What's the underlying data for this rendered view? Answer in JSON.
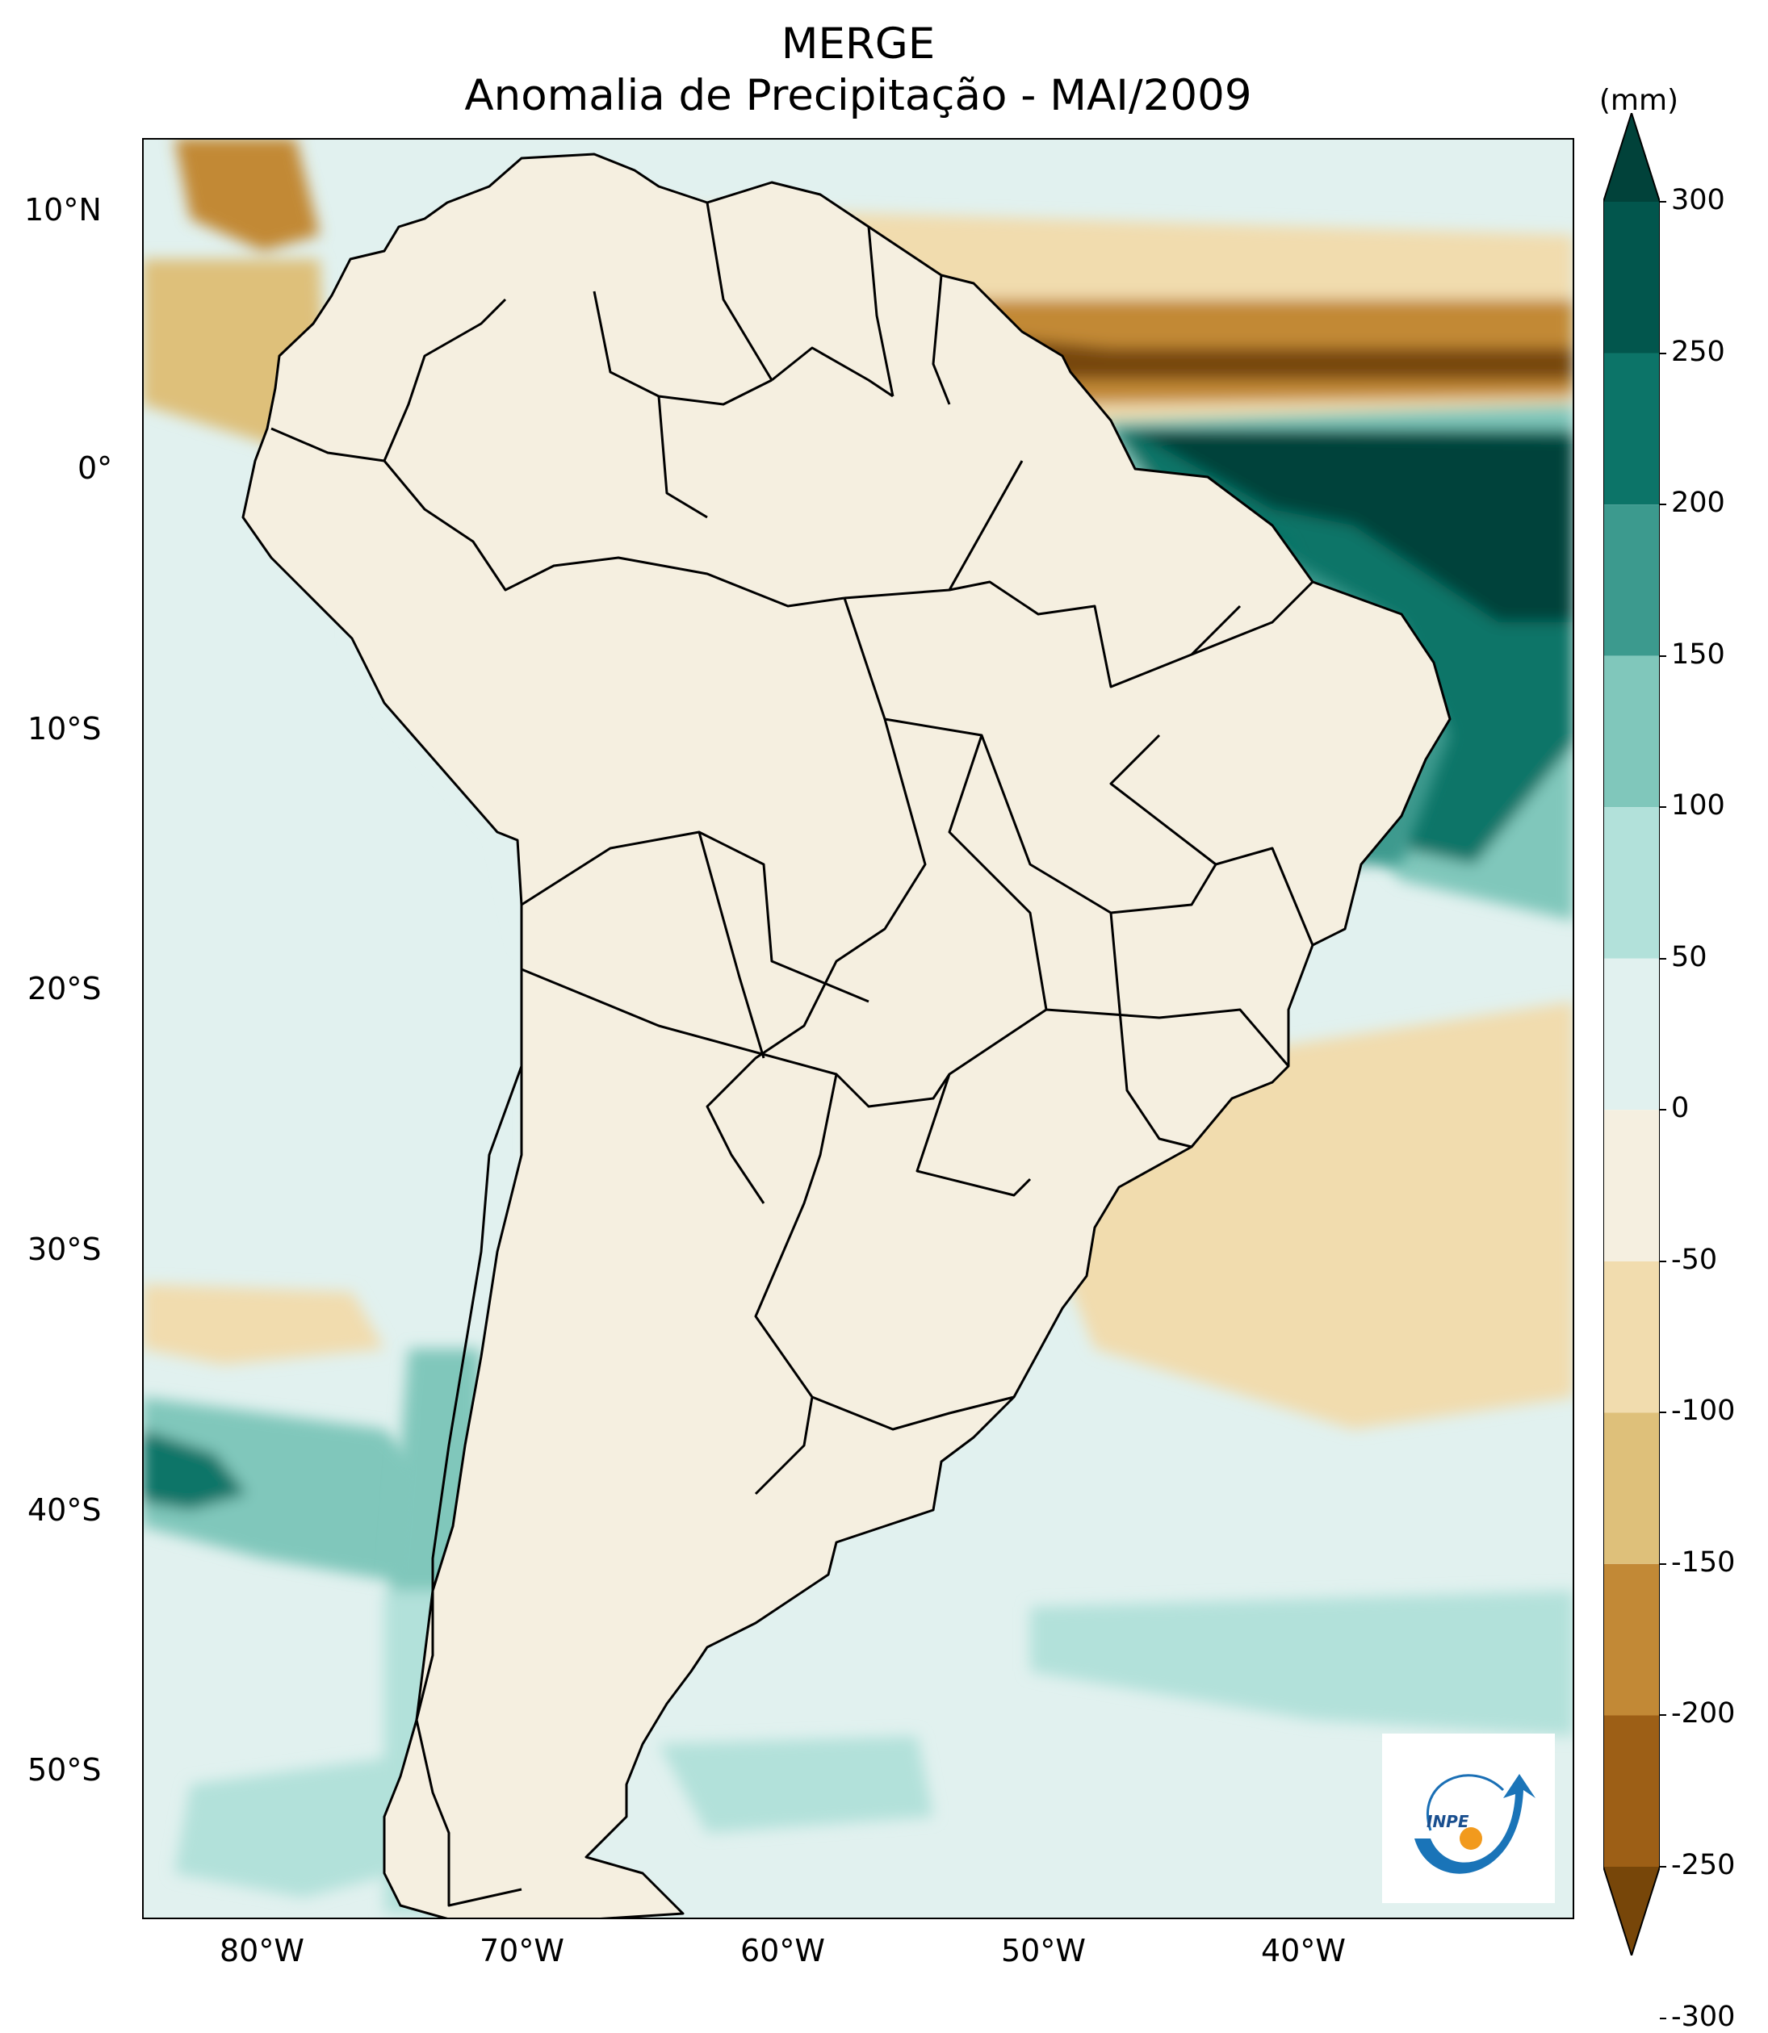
{
  "title": "MERGE",
  "subtitle": "Anomalia de Precipitação - MAI/2009",
  "map": {
    "lon_range": [
      -85,
      -30
    ],
    "lat_range": [
      -56,
      12.5
    ],
    "lon_ticks": [
      "80°W",
      "70°W",
      "60°W",
      "50°W",
      "40°W"
    ],
    "lat_ticks": [
      "10°N",
      "0°",
      "10°S",
      "20°S",
      "30°S",
      "40°S",
      "50°S"
    ]
  },
  "colorbar": {
    "unit": "(mm)",
    "labels": [
      "300",
      "250",
      "200",
      "150",
      "100",
      "50",
      "0",
      "-50",
      "-100",
      "-150",
      "-200",
      "-250",
      "-300"
    ],
    "colors": [
      "#01423a",
      "#02564d",
      "#0c7468",
      "#3c9a8e",
      "#80c7bb",
      "#b2e1da",
      "#e1f1ef",
      "#f5efe0",
      "#f1dcae",
      "#dec07a",
      "#c28936",
      "#9d5f16",
      "#774609"
    ]
  },
  "colors": {
    "land_base": "#f5efe0",
    "ocean_base": "#e1f1ef",
    "border": "#000000"
  },
  "logo": {
    "text": "INPE"
  }
}
